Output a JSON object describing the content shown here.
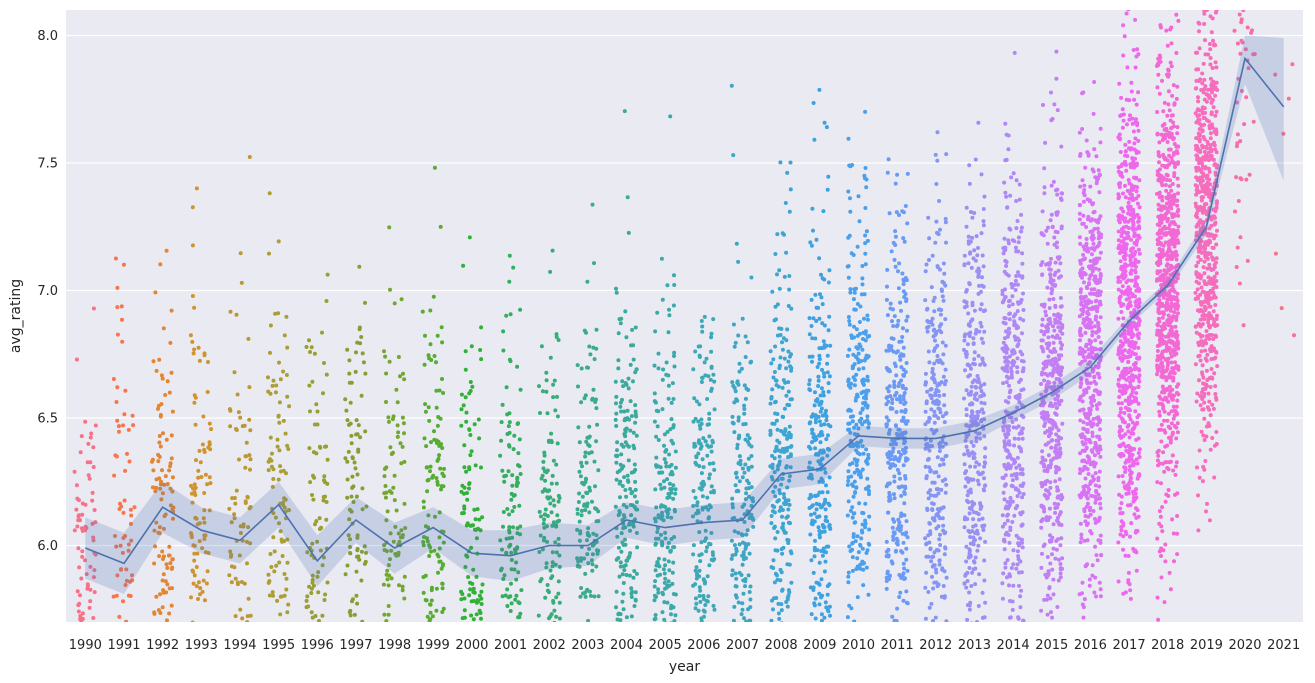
{
  "chart_data": {
    "type": "scatter",
    "xlabel": "year",
    "ylabel": "avg_rating",
    "ylim": [
      5.7,
      8.1
    ],
    "y_ticks": [
      "6.0",
      "6.5",
      "7.0",
      "7.5",
      "8.0"
    ],
    "categories": [
      "1990",
      "1991",
      "1992",
      "1993",
      "1994",
      "1995",
      "1996",
      "1997",
      "1998",
      "1999",
      "2000",
      "2001",
      "2002",
      "2003",
      "2004",
      "2005",
      "2006",
      "2007",
      "2008",
      "2009",
      "2010",
      "2011",
      "2012",
      "2013",
      "2014",
      "2015",
      "2016",
      "2017",
      "2018",
      "2019",
      "2020",
      "2021"
    ],
    "grid": true,
    "background": "#eaeaf2",
    "category_colors": [
      "#f77189",
      "#f7754f",
      "#e38532",
      "#d0942f",
      "#bb9832",
      "#ab9e32",
      "#999f31",
      "#879f32",
      "#74a731",
      "#56ad31",
      "#33b039",
      "#36ae5f",
      "#38ad7a",
      "#3aac8d",
      "#3baa9c",
      "#3ca9a9",
      "#3da8b6",
      "#3ea6c2",
      "#3ea5d0",
      "#3fa2e0",
      "#4ba0ec",
      "#6a9af4",
      "#8495f4",
      "#9a90f4",
      "#ae88f4",
      "#c27ff4",
      "#d873f4",
      "#ed68ed",
      "#f369d3",
      "#f56dbc",
      "#f66fa8",
      "#f7728f"
    ],
    "strip_point_counts": [
      85,
      85,
      120,
      110,
      95,
      110,
      100,
      110,
      110,
      140,
      140,
      150,
      160,
      180,
      220,
      230,
      200,
      200,
      250,
      280,
      300,
      320,
      300,
      330,
      380,
      450,
      550,
      700,
      750,
      620,
      55,
      8
    ],
    "strip_point_spreads": [
      0.3,
      0.45,
      0.45,
      0.45,
      0.45,
      0.45,
      0.45,
      0.45,
      0.45,
      0.45,
      0.45,
      0.45,
      0.45,
      0.45,
      0.45,
      0.45,
      0.45,
      0.45,
      0.45,
      0.45,
      0.45,
      0.45,
      0.45,
      0.45,
      0.45,
      0.45,
      0.45,
      0.45,
      0.45,
      0.45,
      0.45,
      0.45
    ],
    "mean_line": {
      "color": "#4c72b0",
      "values": [
        5.99,
        5.93,
        6.15,
        6.06,
        6.02,
        6.16,
        5.94,
        6.1,
        5.99,
        6.07,
        5.97,
        5.96,
        6.0,
        6.0,
        6.1,
        6.07,
        6.09,
        6.1,
        6.28,
        6.3,
        6.43,
        6.42,
        6.42,
        6.45,
        6.52,
        6.6,
        6.7,
        6.88,
        7.02,
        7.25,
        7.91,
        7.72
      ],
      "ci_low": [
        5.87,
        5.81,
        6.05,
        5.97,
        5.93,
        6.07,
        5.84,
        6.01,
        5.89,
        5.99,
        5.88,
        5.86,
        5.91,
        5.92,
        6.03,
        6.0,
        6.02,
        6.03,
        6.22,
        6.24,
        6.39,
        6.38,
        6.38,
        6.41,
        6.49,
        6.57,
        6.67,
        6.86,
        7.0,
        7.22,
        7.81,
        7.43
      ],
      "ci_high": [
        6.11,
        6.05,
        6.25,
        6.15,
        6.11,
        6.25,
        6.04,
        6.19,
        6.09,
        6.15,
        6.06,
        6.06,
        6.09,
        6.08,
        6.17,
        6.14,
        6.16,
        6.17,
        6.34,
        6.36,
        6.47,
        6.46,
        6.46,
        6.49,
        6.55,
        6.63,
        6.73,
        6.9,
        7.04,
        7.28,
        8.0,
        7.99
      ]
    }
  }
}
